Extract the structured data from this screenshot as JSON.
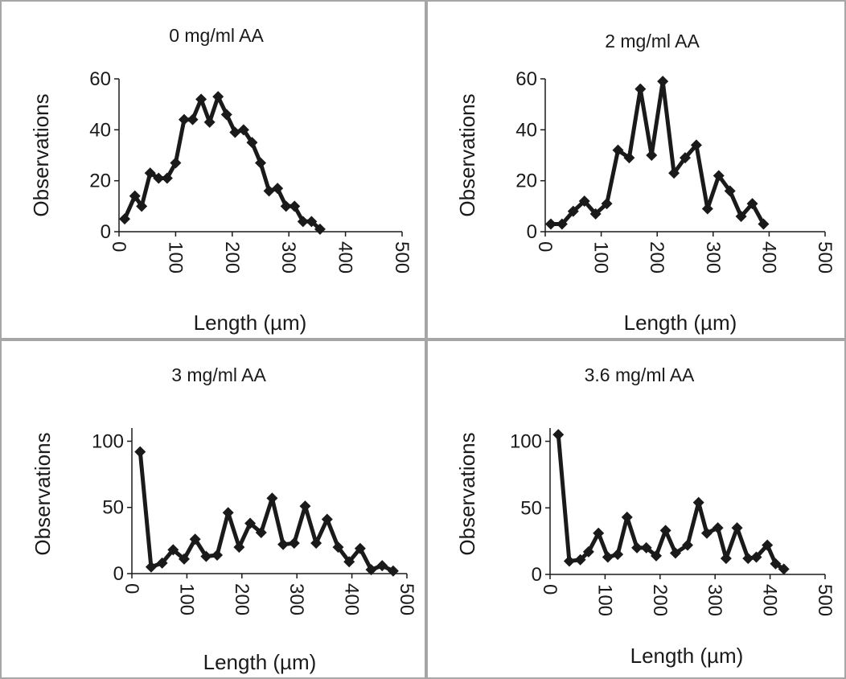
{
  "chart_data": [
    {
      "type": "line",
      "title": "0 mg/ml AA",
      "xlabel": "Length (µm)",
      "ylabel": "Observations",
      "xlim": [
        0,
        500
      ],
      "ylim": [
        0,
        60
      ],
      "xticks": [
        0,
        100,
        200,
        300,
        400,
        500
      ],
      "yticks": [
        0,
        20,
        40,
        60
      ],
      "grid": false,
      "series": [
        {
          "x": [
            10,
            28,
            40,
            55,
            70,
            85,
            100,
            115,
            130,
            145,
            160,
            175,
            190,
            205,
            220,
            235,
            250,
            265,
            280,
            295,
            310,
            325,
            340,
            355
          ],
          "y": [
            5,
            14,
            10,
            23,
            21,
            21,
            27,
            44,
            44,
            52,
            43,
            53,
            46,
            39,
            40,
            35,
            27,
            16,
            17,
            10,
            10,
            4,
            4,
            1
          ]
        }
      ]
    },
    {
      "type": "line",
      "title": "2 mg/ml AA",
      "xlabel": "Length (µm)",
      "ylabel": "Observations",
      "xlim": [
        0,
        500
      ],
      "ylim": [
        0,
        60
      ],
      "xticks": [
        0,
        100,
        200,
        300,
        400,
        500
      ],
      "yticks": [
        0,
        20,
        40,
        60
      ],
      "grid": false,
      "series": [
        {
          "x": [
            10,
            30,
            50,
            70,
            90,
            110,
            130,
            150,
            170,
            190,
            210,
            230,
            250,
            270,
            290,
            310,
            330,
            350,
            370,
            390
          ],
          "y": [
            3,
            3,
            8,
            12,
            7,
            11,
            32,
            29,
            56,
            30,
            59,
            23,
            29,
            34,
            9,
            22,
            16,
            6,
            11,
            3
          ]
        }
      ]
    },
    {
      "type": "line",
      "title": "3 mg/ml AA",
      "xlabel": "Length (µm)",
      "ylabel": "Observations",
      "xlim": [
        0,
        500
      ],
      "ylim": [
        0,
        110
      ],
      "xticks": [
        0,
        100,
        200,
        300,
        400,
        500
      ],
      "yticks": [
        0,
        50,
        100
      ],
      "grid": false,
      "series": [
        {
          "x": [
            15,
            35,
            55,
            75,
            95,
            115,
            135,
            155,
            175,
            195,
            215,
            235,
            255,
            275,
            295,
            315,
            335,
            355,
            375,
            395,
            415,
            435,
            455,
            475
          ],
          "y": [
            92,
            5,
            8,
            18,
            11,
            26,
            13,
            14,
            46,
            20,
            38,
            31,
            57,
            22,
            23,
            51,
            23,
            41,
            20,
            9,
            19,
            3,
            6,
            2
          ]
        }
      ]
    },
    {
      "type": "line",
      "title": "3.6 mg/ml AA",
      "xlabel": "Length (µm)",
      "ylabel": "Observations",
      "xlim": [
        0,
        500
      ],
      "ylim": [
        0,
        110
      ],
      "xticks": [
        0,
        100,
        200,
        300,
        400,
        500
      ],
      "yticks": [
        0,
        50,
        100
      ],
      "grid": false,
      "series": [
        {
          "x": [
            15,
            35,
            55,
            70,
            88,
            105,
            123,
            140,
            158,
            175,
            193,
            210,
            228,
            250,
            270,
            285,
            305,
            320,
            340,
            360,
            375,
            395,
            410,
            425
          ],
          "y": [
            105,
            10,
            11,
            17,
            31,
            13,
            15,
            43,
            20,
            20,
            14,
            33,
            16,
            22,
            54,
            31,
            35,
            12,
            35,
            12,
            13,
            22,
            8,
            4
          ]
        }
      ]
    }
  ]
}
